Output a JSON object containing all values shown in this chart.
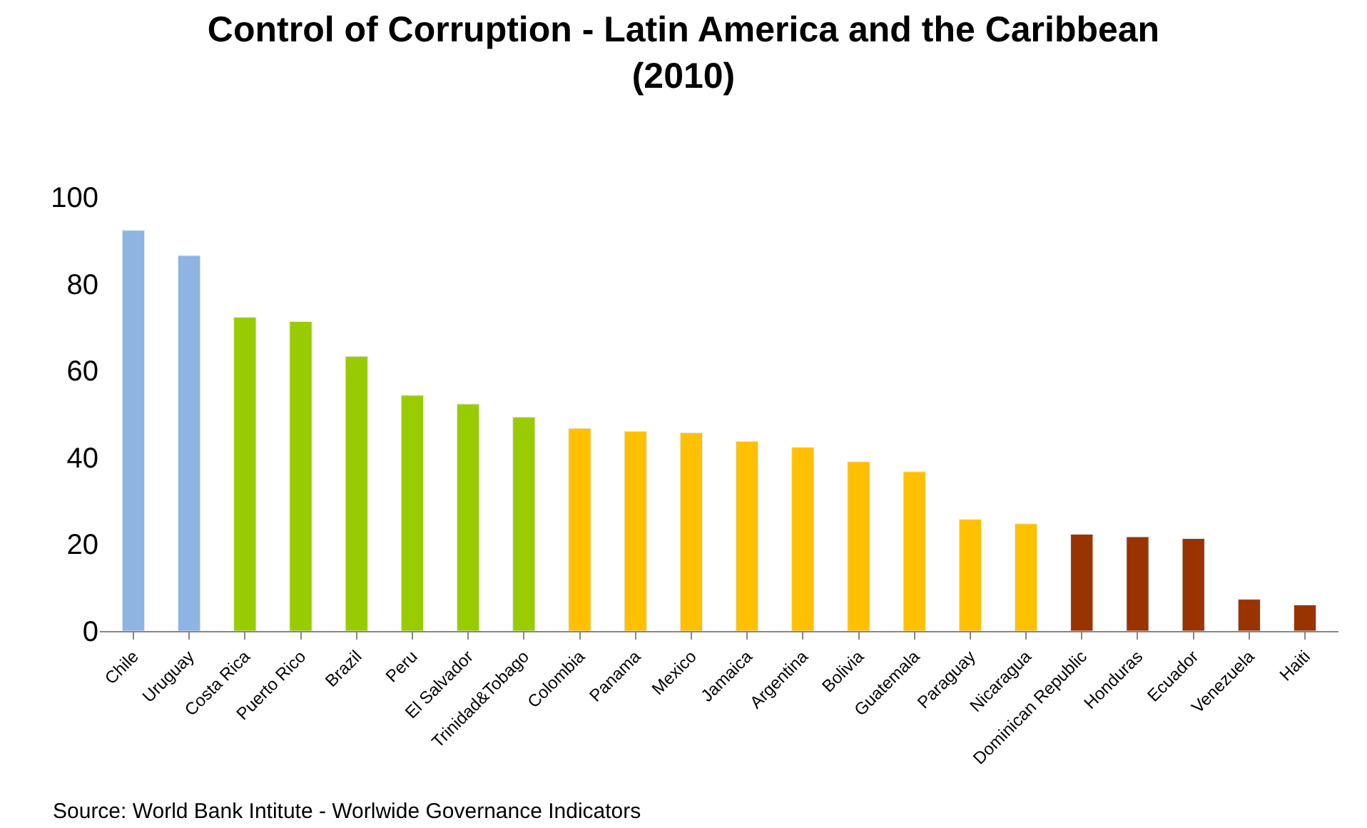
{
  "chart_data": {
    "type": "bar",
    "title": "Control of Corruption - Latin America and the Caribbean (2010)",
    "categories": [
      "Chile",
      "Uruguay",
      "Costa Rica",
      "Puerto Rico",
      "Brazil",
      "Peru",
      "El Salvador",
      "Trinidad&Tobago",
      "Colombia",
      "Panama",
      "Mexico",
      "Jamaica",
      "Argentina",
      "Bolivia",
      "Guatemala",
      "Paraguay",
      "Nicaragua",
      "Dominican Republic",
      "Honduras",
      "Ecuador",
      "Venezuela",
      "Haiti"
    ],
    "values": [
      92.3,
      86.5,
      72.3,
      71.3,
      63.3,
      54.3,
      52.3,
      49.3,
      46.7,
      46,
      45.7,
      43.7,
      42.3,
      39,
      36.7,
      25.7,
      24.7,
      22.3,
      21.7,
      21.3,
      7.3,
      6
    ],
    "colors": [
      "#8db4e2",
      "#8db4e2",
      "#99cc00",
      "#99cc00",
      "#99cc00",
      "#99cc00",
      "#99cc00",
      "#99cc00",
      "#ffc000",
      "#ffc000",
      "#ffc000",
      "#ffc000",
      "#ffc000",
      "#ffc000",
      "#ffc000",
      "#ffc000",
      "#ffc000",
      "#993300",
      "#993300",
      "#993300",
      "#993300",
      "#993300"
    ],
    "ylim": [
      0,
      100
    ],
    "yticks": [
      0,
      20,
      40,
      60,
      80,
      100
    ],
    "grid": false,
    "annotations": [
      "Source: World Bank Intitute - Worlwide Governance Indicators"
    ]
  }
}
